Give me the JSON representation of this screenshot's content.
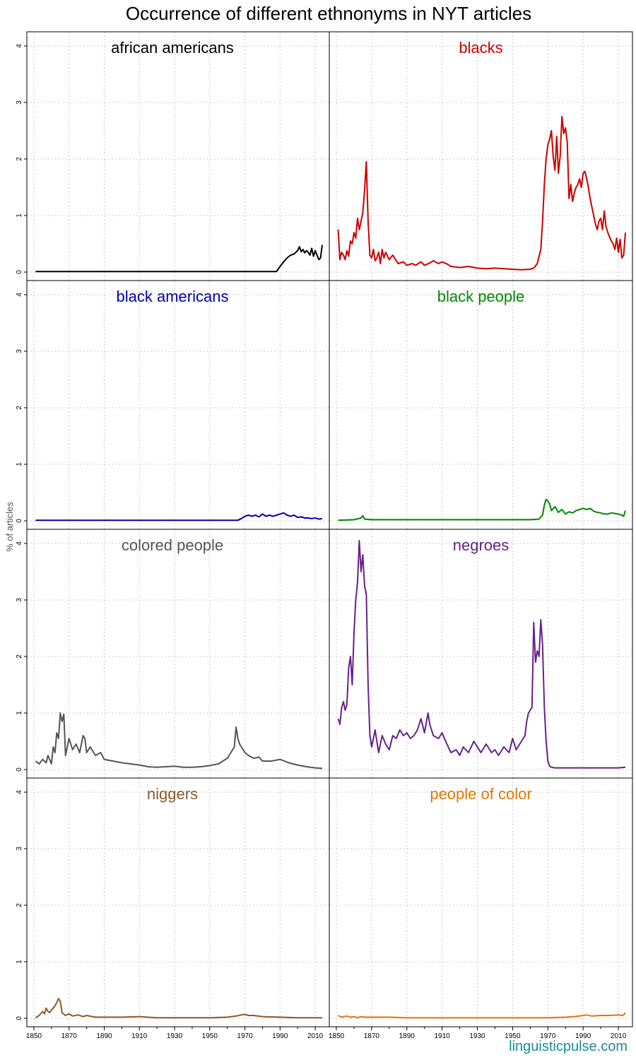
{
  "chart_data": {
    "type": "line",
    "title": "Occurrence of different ethnonyms in NYT articles",
    "ylabel": "% of articles",
    "xlabel": "",
    "credit": "linguisticpulse.com",
    "xlim": [
      1846,
      2018
    ],
    "ylim": [
      -0.15,
      4.25
    ],
    "xticks": [
      1850,
      1870,
      1890,
      1910,
      1930,
      1950,
      1970,
      1990,
      2010
    ],
    "yticks": [
      0,
      1,
      2,
      3,
      4
    ],
    "grid": true,
    "layout": "4x2 panels",
    "series": [
      {
        "name": "african americans",
        "color": "#000000",
        "x": [
          1851,
          1880,
          1910,
          1940,
          1970,
          1988,
          1990,
          1992,
          1994,
          1996,
          1998,
          2000,
          2001,
          2002,
          2003,
          2004,
          2005,
          2006,
          2007,
          2008,
          2009,
          2010,
          2011,
          2012,
          2013,
          2014
        ],
        "y": [
          0.01,
          0.01,
          0.01,
          0.01,
          0.01,
          0.01,
          0.1,
          0.18,
          0.25,
          0.3,
          0.32,
          0.38,
          0.45,
          0.36,
          0.4,
          0.34,
          0.38,
          0.35,
          0.3,
          0.42,
          0.28,
          0.38,
          0.3,
          0.22,
          0.25,
          0.48
        ]
      },
      {
        "name": "blacks",
        "color": "#cc0000",
        "x": [
          1851,
          1852,
          1853,
          1854,
          1855,
          1856,
          1857,
          1858,
          1859,
          1860,
          1861,
          1862,
          1863,
          1864,
          1865,
          1866,
          1867,
          1868,
          1869,
          1870,
          1871,
          1872,
          1873,
          1874,
          1875,
          1876,
          1877,
          1878,
          1880,
          1882,
          1885,
          1888,
          1890,
          1893,
          1895,
          1898,
          1900,
          1903,
          1905,
          1908,
          1910,
          1913,
          1915,
          1920,
          1925,
          1930,
          1935,
          1940,
          1945,
          1950,
          1955,
          1960,
          1962,
          1964,
          1966,
          1967,
          1968,
          1969,
          1970,
          1971,
          1972,
          1973,
          1974,
          1975,
          1976,
          1977,
          1978,
          1979,
          1980,
          1981,
          1982,
          1983,
          1984,
          1985,
          1986,
          1987,
          1988,
          1989,
          1990,
          1991,
          1992,
          1993,
          1994,
          1995,
          1996,
          1997,
          1998,
          1999,
          2000,
          2001,
          2002,
          2003,
          2004,
          2005,
          2006,
          2007,
          2008,
          2009,
          2010,
          2011,
          2012,
          2013,
          2014
        ],
        "y": [
          0.75,
          0.22,
          0.35,
          0.3,
          0.22,
          0.38,
          0.28,
          0.55,
          0.5,
          0.7,
          0.6,
          0.95,
          0.75,
          0.9,
          1.05,
          1.45,
          1.95,
          0.9,
          0.3,
          0.25,
          0.4,
          0.2,
          0.25,
          0.35,
          0.15,
          0.4,
          0.25,
          0.35,
          0.22,
          0.3,
          0.15,
          0.18,
          0.12,
          0.15,
          0.12,
          0.18,
          0.12,
          0.16,
          0.2,
          0.15,
          0.18,
          0.14,
          0.1,
          0.08,
          0.1,
          0.07,
          0.06,
          0.07,
          0.06,
          0.05,
          0.04,
          0.05,
          0.07,
          0.15,
          0.4,
          0.9,
          1.55,
          2.0,
          2.25,
          2.35,
          2.5,
          2.05,
          1.8,
          2.4,
          1.75,
          2.05,
          2.75,
          2.45,
          2.55,
          2.3,
          1.3,
          1.55,
          1.25,
          1.4,
          1.5,
          1.55,
          1.65,
          1.5,
          1.75,
          1.78,
          1.65,
          1.5,
          1.3,
          1.15,
          1.0,
          0.85,
          0.75,
          0.9,
          0.95,
          0.75,
          1.08,
          0.8,
          0.7,
          0.62,
          0.55,
          0.5,
          0.4,
          0.6,
          0.35,
          0.58,
          0.25,
          0.3,
          0.7
        ]
      },
      {
        "name": "black americans",
        "color": "#0000aa",
        "x": [
          1851,
          1880,
          1910,
          1940,
          1960,
          1966,
          1968,
          1970,
          1972,
          1974,
          1976,
          1978,
          1980,
          1982,
          1984,
          1986,
          1988,
          1990,
          1992,
          1994,
          1996,
          1998,
          2000,
          2002,
          2004,
          2006,
          2008,
          2010,
          2012,
          2014
        ],
        "y": [
          0.01,
          0.01,
          0.01,
          0.01,
          0.01,
          0.01,
          0.04,
          0.08,
          0.1,
          0.08,
          0.1,
          0.07,
          0.12,
          0.08,
          0.1,
          0.08,
          0.1,
          0.12,
          0.14,
          0.1,
          0.08,
          0.1,
          0.06,
          0.07,
          0.05,
          0.05,
          0.04,
          0.05,
          0.03,
          0.04
        ]
      },
      {
        "name": "black people",
        "color": "#008800",
        "x": [
          1851,
          1860,
          1864,
          1865,
          1866,
          1870,
          1880,
          1900,
          1920,
          1940,
          1960,
          1965,
          1967,
          1968,
          1969,
          1970,
          1971,
          1972,
          1974,
          1976,
          1978,
          1980,
          1982,
          1984,
          1986,
          1988,
          1990,
          1992,
          1994,
          1996,
          1998,
          2000,
          2002,
          2004,
          2006,
          2008,
          2010,
          2012,
          2013,
          2014
        ],
        "y": [
          0.01,
          0.02,
          0.05,
          0.09,
          0.03,
          0.02,
          0.02,
          0.02,
          0.02,
          0.02,
          0.02,
          0.03,
          0.1,
          0.28,
          0.38,
          0.35,
          0.3,
          0.18,
          0.25,
          0.15,
          0.2,
          0.12,
          0.16,
          0.14,
          0.18,
          0.2,
          0.22,
          0.2,
          0.22,
          0.17,
          0.15,
          0.14,
          0.12,
          0.12,
          0.14,
          0.13,
          0.12,
          0.1,
          0.08,
          0.18
        ]
      },
      {
        "name": "colored people",
        "color": "#555555",
        "x": [
          1851,
          1853,
          1855,
          1857,
          1858,
          1860,
          1861,
          1862,
          1863,
          1864,
          1865,
          1866,
          1867,
          1868,
          1869,
          1870,
          1872,
          1874,
          1876,
          1878,
          1879,
          1880,
          1882,
          1885,
          1888,
          1890,
          1895,
          1900,
          1905,
          1910,
          1915,
          1920,
          1925,
          1930,
          1935,
          1940,
          1945,
          1950,
          1955,
          1960,
          1962,
          1964,
          1965,
          1966,
          1967,
          1968,
          1970,
          1972,
          1975,
          1978,
          1980,
          1985,
          1990,
          1995,
          2000,
          2005,
          2010,
          2014
        ],
        "y": [
          0.15,
          0.1,
          0.18,
          0.12,
          0.25,
          0.1,
          0.4,
          0.3,
          0.65,
          0.55,
          1.0,
          0.85,
          0.98,
          0.25,
          0.4,
          0.55,
          0.35,
          0.45,
          0.3,
          0.6,
          0.55,
          0.3,
          0.4,
          0.25,
          0.3,
          0.18,
          0.15,
          0.12,
          0.1,
          0.08,
          0.05,
          0.04,
          0.05,
          0.06,
          0.04,
          0.04,
          0.05,
          0.07,
          0.1,
          0.2,
          0.3,
          0.4,
          0.75,
          0.55,
          0.45,
          0.4,
          0.3,
          0.25,
          0.2,
          0.22,
          0.15,
          0.15,
          0.18,
          0.12,
          0.08,
          0.05,
          0.03,
          0.02
        ]
      },
      {
        "name": "negroes",
        "color": "#662288",
        "x": [
          1851,
          1852,
          1853,
          1854,
          1855,
          1856,
          1857,
          1858,
          1859,
          1860,
          1861,
          1862,
          1863,
          1864,
          1865,
          1866,
          1867,
          1868,
          1869,
          1870,
          1872,
          1874,
          1876,
          1878,
          1880,
          1882,
          1884,
          1886,
          1888,
          1890,
          1892,
          1894,
          1896,
          1898,
          1900,
          1902,
          1903,
          1905,
          1908,
          1910,
          1912,
          1915,
          1918,
          1920,
          1922,
          1925,
          1928,
          1930,
          1932,
          1935,
          1938,
          1940,
          1942,
          1945,
          1948,
          1950,
          1952,
          1955,
          1957,
          1958,
          1959,
          1960,
          1961,
          1962,
          1963,
          1964,
          1965,
          1966,
          1967,
          1968,
          1969,
          1970,
          1971,
          1972,
          1974,
          1980,
          1990,
          2000,
          2010,
          2014
        ],
        "y": [
          0.9,
          0.8,
          1.1,
          1.2,
          1.05,
          1.15,
          1.8,
          2.0,
          1.5,
          2.4,
          3.0,
          3.3,
          4.05,
          3.5,
          3.8,
          3.25,
          3.1,
          1.5,
          0.6,
          0.4,
          0.7,
          0.3,
          0.6,
          0.45,
          0.35,
          0.6,
          0.55,
          0.7,
          0.6,
          0.65,
          0.55,
          0.6,
          0.7,
          0.9,
          0.65,
          1.0,
          0.8,
          0.6,
          0.55,
          0.65,
          0.5,
          0.3,
          0.35,
          0.25,
          0.4,
          0.3,
          0.5,
          0.4,
          0.3,
          0.45,
          0.3,
          0.35,
          0.25,
          0.4,
          0.3,
          0.55,
          0.35,
          0.5,
          0.6,
          0.85,
          1.0,
          1.05,
          1.1,
          2.6,
          1.9,
          2.1,
          2.0,
          2.65,
          2.2,
          1.1,
          0.5,
          0.15,
          0.06,
          0.04,
          0.03,
          0.03,
          0.03,
          0.03,
          0.03,
          0.04
        ]
      },
      {
        "name": "niggers",
        "color": "#8b5a2b",
        "x": [
          1851,
          1853,
          1855,
          1856,
          1857,
          1858,
          1859,
          1860,
          1861,
          1862,
          1863,
          1864,
          1865,
          1866,
          1868,
          1870,
          1872,
          1875,
          1878,
          1880,
          1885,
          1890,
          1900,
          1910,
          1920,
          1930,
          1940,
          1950,
          1960,
          1965,
          1968,
          1970,
          1972,
          1975,
          1980,
          1990,
          2000,
          2010,
          2014
        ],
        "y": [
          0.01,
          0.05,
          0.12,
          0.08,
          0.18,
          0.12,
          0.1,
          0.15,
          0.18,
          0.22,
          0.28,
          0.35,
          0.3,
          0.1,
          0.05,
          0.08,
          0.04,
          0.06,
          0.03,
          0.05,
          0.02,
          0.02,
          0.02,
          0.03,
          0.01,
          0.01,
          0.01,
          0.01,
          0.02,
          0.04,
          0.06,
          0.07,
          0.05,
          0.05,
          0.03,
          0.02,
          0.01,
          0.01,
          0.01
        ]
      },
      {
        "name": "people of color",
        "color": "#e07800",
        "x": [
          1851,
          1853,
          1856,
          1858,
          1860,
          1862,
          1864,
          1866,
          1870,
          1880,
          1890,
          1900,
          1910,
          1920,
          1930,
          1940,
          1950,
          1960,
          1970,
          1980,
          1985,
          1990,
          1992,
          1995,
          2000,
          2005,
          2010,
          2012,
          2013,
          2014
        ],
        "y": [
          0.05,
          0.02,
          0.04,
          0.02,
          0.03,
          0.01,
          0.03,
          0.02,
          0.02,
          0.02,
          0.01,
          0.01,
          0.01,
          0.01,
          0.01,
          0.01,
          0.01,
          0.01,
          0.01,
          0.02,
          0.03,
          0.05,
          0.06,
          0.04,
          0.05,
          0.05,
          0.06,
          0.05,
          0.06,
          0.1
        ]
      }
    ]
  }
}
